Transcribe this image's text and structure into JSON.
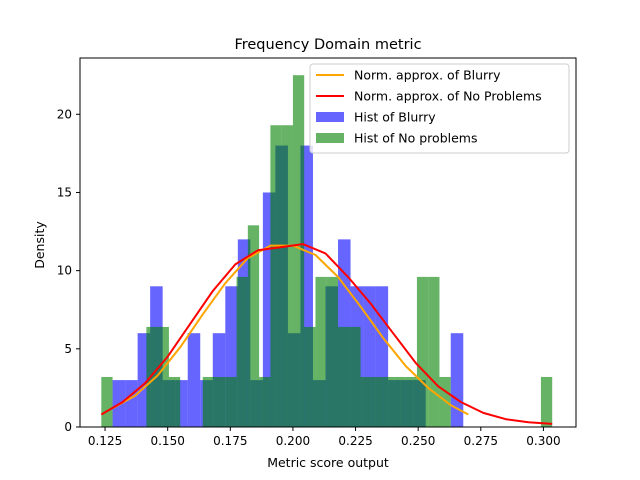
{
  "chart_data": {
    "type": "histogram",
    "title": "Frequency Domain metric",
    "xlabel": "Metric score output",
    "ylabel": "Density",
    "xlim": [
      0.115,
      0.313
    ],
    "ylim": [
      0,
      23.6
    ],
    "xticks": [
      0.125,
      0.15,
      0.175,
      0.2,
      0.225,
      0.25,
      0.275,
      0.3
    ],
    "xtick_labels": [
      "0.125",
      "0.150",
      "0.175",
      "0.200",
      "0.225",
      "0.250",
      "0.275",
      "0.300"
    ],
    "yticks": [
      0,
      5,
      10,
      15,
      20
    ],
    "ytick_labels": [
      "0",
      "5",
      "10",
      "15",
      "20"
    ],
    "grid": false,
    "legend_position": "top-right",
    "histograms": [
      {
        "name": "Hist of Blurry",
        "color": "#0000ff",
        "alpha": 0.6,
        "bin_width": 0.005,
        "bin_lefts": [
          0.128,
          0.133,
          0.138,
          0.143,
          0.148,
          0.153,
          0.158,
          0.163,
          0.168,
          0.173,
          0.178,
          0.183,
          0.188,
          0.193,
          0.198,
          0.203,
          0.208,
          0.213,
          0.218,
          0.223,
          0.228,
          0.233,
          0.238,
          0.243,
          0.248,
          0.253,
          0.258,
          0.263
        ],
        "values": [
          3,
          3,
          6,
          9,
          3,
          3,
          6,
          3,
          6,
          9,
          12,
          3,
          15,
          18,
          6,
          18,
          3,
          9,
          12,
          9,
          9,
          9,
          3,
          3,
          3,
          0,
          0,
          6
        ]
      },
      {
        "name": "Hist of No problems",
        "color": "#008000",
        "alpha": 0.6,
        "bin_width": 0.0045,
        "bin_lefts": [
          0.1235,
          0.128,
          0.1325,
          0.137,
          0.1415,
          0.146,
          0.1505,
          0.155,
          0.1595,
          0.164,
          0.1685,
          0.173,
          0.1775,
          0.182,
          0.1865,
          0.191,
          0.1955,
          0.2,
          0.2045,
          0.209,
          0.2135,
          0.218,
          0.2225,
          0.227,
          0.2315,
          0.236,
          0.2405,
          0.245,
          0.2495,
          0.254,
          0.2585,
          0.263,
          0.2675,
          0.272,
          0.2765,
          0.281,
          0.2855,
          0.29,
          0.2945,
          0.299
        ],
        "values": [
          3.2,
          0,
          0,
          0,
          6.4,
          6.4,
          3.2,
          0,
          0,
          3.2,
          3.2,
          3.2,
          9.6,
          12.9,
          3.2,
          19.3,
          19.3,
          22.5,
          6.4,
          9.6,
          9.6,
          6.4,
          6.4,
          3.2,
          3.2,
          3.2,
          3.2,
          3.2,
          9.6,
          9.6,
          3.2,
          0,
          0,
          0,
          0,
          0,
          0,
          0,
          0,
          3.2
        ]
      }
    ],
    "series": [
      {
        "name": "Norm. approx. of Blurry",
        "color": "#ffa500",
        "x": [
          0.128,
          0.137,
          0.146,
          0.155,
          0.164,
          0.173,
          0.182,
          0.191,
          0.2,
          0.209,
          0.218,
          0.227,
          0.236,
          0.245,
          0.254,
          0.263,
          0.27
        ],
        "y": [
          1.2,
          2.0,
          3.3,
          5.1,
          7.2,
          9.2,
          10.8,
          11.6,
          11.6,
          11.0,
          9.6,
          7.7,
          5.7,
          3.9,
          2.5,
          1.4,
          0.8
        ]
      },
      {
        "name": "Norm. approx. of No Problems",
        "color": "#ff0000",
        "x": [
          0.1235,
          0.132,
          0.141,
          0.15,
          0.159,
          0.168,
          0.177,
          0.186,
          0.195,
          0.204,
          0.213,
          0.222,
          0.231,
          0.24,
          0.249,
          0.258,
          0.267,
          0.276,
          0.285,
          0.294,
          0.3035
        ],
        "y": [
          0.8,
          1.6,
          2.8,
          4.5,
          6.6,
          8.7,
          10.4,
          11.3,
          11.5,
          11.7,
          11.1,
          9.6,
          7.9,
          6.0,
          4.1,
          2.6,
          1.6,
          0.9,
          0.5,
          0.3,
          0.2
        ]
      }
    ],
    "legend": [
      {
        "label": "Norm. approx. of Blurry",
        "kind": "line",
        "color": "#ffa500"
      },
      {
        "label": "Norm. approx. of No Problems",
        "kind": "line",
        "color": "#ff0000"
      },
      {
        "label": "Hist of Blurry",
        "kind": "patch",
        "color": "#0000ff",
        "alpha": 0.6
      },
      {
        "label": "Hist of No problems",
        "kind": "patch",
        "color": "#008000",
        "alpha": 0.6
      }
    ]
  }
}
